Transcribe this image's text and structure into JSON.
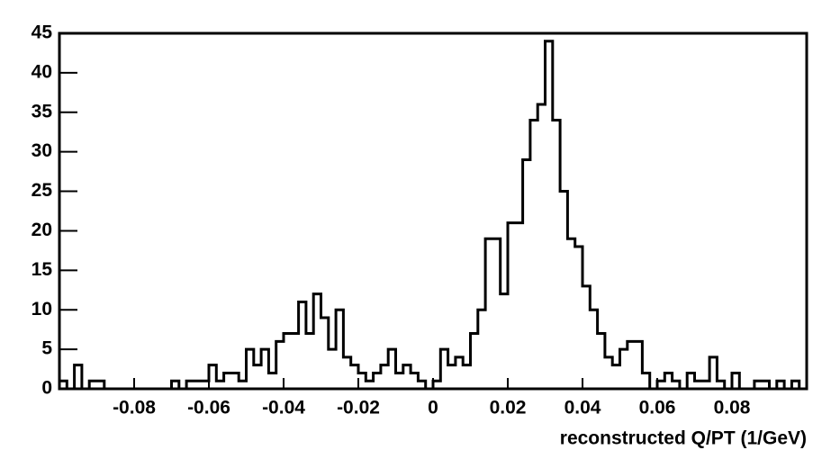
{
  "chart_data": {
    "type": "histogram",
    "x_label": "reconstructed Q/PT (1/GeV)",
    "bins": [
      -0.1,
      -0.098,
      -0.096,
      -0.094,
      -0.092,
      -0.09,
      -0.088,
      -0.086,
      -0.084,
      -0.082,
      -0.08,
      -0.078,
      -0.076,
      -0.074,
      -0.072,
      -0.07,
      -0.068,
      -0.066,
      -0.064,
      -0.062,
      -0.06,
      -0.058,
      -0.056,
      -0.054,
      -0.052,
      -0.05,
      -0.048,
      -0.046,
      -0.044,
      -0.042,
      -0.04,
      -0.038,
      -0.036,
      -0.034,
      -0.032,
      -0.03,
      -0.028,
      -0.026,
      -0.024,
      -0.022,
      -0.02,
      -0.018,
      -0.016,
      -0.014,
      -0.012,
      -0.01,
      -0.008,
      -0.006,
      -0.004,
      -0.002,
      0,
      0.002,
      0.004,
      0.006,
      0.008,
      0.01,
      0.012,
      0.014,
      0.016,
      0.018,
      0.02,
      0.022,
      0.024,
      0.026,
      0.028,
      0.03,
      0.032,
      0.034,
      0.036,
      0.038,
      0.04,
      0.042,
      0.044,
      0.046,
      0.048,
      0.05,
      0.052,
      0.054,
      0.056,
      0.058,
      0.06,
      0.062,
      0.064,
      0.066,
      0.068,
      0.07,
      0.072,
      0.074,
      0.076,
      0.078,
      0.08,
      0.082,
      0.084,
      0.086,
      0.088,
      0.09,
      0.092,
      0.094,
      0.096,
      0.098,
      0.1
    ],
    "values": [
      1,
      0,
      3,
      0,
      1,
      1,
      0,
      0,
      0,
      0,
      0,
      0,
      0,
      0,
      0,
      1,
      0,
      1,
      1,
      1,
      3,
      1,
      2,
      2,
      1,
      5,
      3,
      5,
      2,
      6,
      7,
      7,
      11,
      7,
      12,
      9,
      5,
      10,
      4,
      3,
      2,
      1,
      2,
      3,
      5,
      2,
      3,
      2,
      1,
      0,
      1,
      5,
      3,
      4,
      3,
      7,
      10,
      19,
      19,
      12,
      21,
      21,
      29,
      34,
      36,
      44,
      34,
      25,
      19,
      18,
      13,
      10,
      7,
      4,
      3,
      5,
      6,
      6,
      2,
      0,
      1,
      2,
      1,
      0,
      2,
      1,
      1,
      4,
      1,
      0,
      2,
      0,
      0,
      1,
      1,
      0,
      1,
      0,
      1,
      0
    ],
    "color": "#000000",
    "xlim": [
      -0.1,
      0.1
    ],
    "ylim": [
      0,
      45
    ],
    "xticks": [
      -0.08,
      -0.06,
      -0.04,
      -0.02,
      0,
      0.02,
      0.04,
      0.06,
      0.08
    ],
    "yticks": [
      0,
      5,
      10,
      15,
      20,
      25,
      30,
      35,
      40,
      45
    ]
  }
}
